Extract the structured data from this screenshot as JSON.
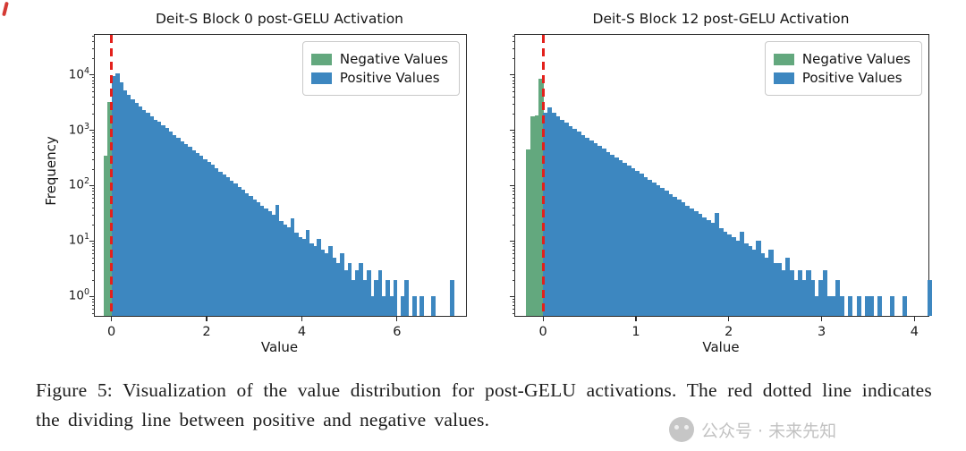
{
  "figure": {
    "caption": "Figure 5: Visualization of the value distribution for post-GELU activations. The red dotted line indicates the dividing line between positive and negative values."
  },
  "watermark": {
    "text": "公众号 · 未来先知"
  },
  "legend": {
    "negative": "Negative Values",
    "positive": "Positive Values"
  },
  "colors": {
    "positive": "#3d87c0",
    "negative": "#63a87e",
    "divider": "#e3211c"
  },
  "chart_data": [
    {
      "type": "bar",
      "title": "Deit-S Block 0 post-GELU Activation",
      "xlabel": "Value",
      "ylabel": "Frequency",
      "yscale": "log",
      "xlim": [
        -0.35,
        7.45
      ],
      "ylog_range": [
        -0.35,
        4.72
      ],
      "xticks": [
        0,
        2,
        4,
        6
      ],
      "ytick_exps": [
        0,
        1,
        2,
        3,
        4
      ],
      "show_ytick_labels": true,
      "vline_x": 0,
      "bin_width": 0.08,
      "positive_start": 0,
      "positive_values": [
        9500,
        10800,
        7200,
        5200,
        4300,
        3600,
        3100,
        2700,
        2350,
        2050,
        1800,
        1550,
        1400,
        1230,
        1080,
        950,
        830,
        730,
        640,
        560,
        500,
        440,
        390,
        345,
        300,
        265,
        235,
        205,
        180,
        160,
        140,
        122,
        108,
        95,
        84,
        74,
        65,
        57,
        50,
        44,
        39,
        34,
        30,
        45,
        23,
        20,
        18,
        26,
        14,
        12,
        11,
        16,
        9,
        8,
        11,
        7,
        6,
        8,
        5,
        4,
        6,
        3,
        4,
        2,
        3,
        4,
        2,
        3,
        1,
        2,
        3,
        1,
        2,
        1,
        2,
        0,
        1,
        2,
        0,
        1,
        0,
        1,
        0,
        0,
        1,
        0,
        0,
        0,
        0,
        2
      ],
      "neg_bin_width": 0.08,
      "negative_bins": [
        [
          -0.16,
          350
        ],
        [
          -0.08,
          3200
        ]
      ]
    },
    {
      "type": "bar",
      "title": "Deit-S Block 12 post-GELU Activation",
      "xlabel": "Value",
      "ylabel": "",
      "yscale": "log",
      "xlim": [
        -0.3,
        4.15
      ],
      "ylog_range": [
        -0.35,
        4.72
      ],
      "xticks": [
        0,
        1,
        2,
        3,
        4
      ],
      "ytick_exps": [
        0,
        1,
        2,
        3,
        4
      ],
      "show_ytick_labels": false,
      "vline_x": 0,
      "bin_width": 0.045,
      "positive_start": 0,
      "positive_values": [
        2100,
        2600,
        2050,
        1750,
        1520,
        1350,
        1180,
        1050,
        930,
        820,
        730,
        650,
        580,
        520,
        460,
        410,
        365,
        325,
        290,
        260,
        230,
        205,
        182,
        162,
        144,
        128,
        114,
        101,
        90,
        80,
        71,
        63,
        56,
        50,
        44,
        39,
        35,
        31,
        27,
        24,
        21,
        32,
        17,
        15,
        13,
        12,
        10,
        15,
        9,
        8,
        7,
        10,
        6,
        5,
        7,
        4,
        4,
        3,
        5,
        3,
        2,
        3,
        2,
        3,
        2,
        1,
        2,
        3,
        1,
        1,
        2,
        1,
        0,
        1,
        0,
        1,
        0,
        1,
        1,
        0,
        1,
        0,
        0,
        1,
        0,
        0,
        1,
        0,
        0,
        0,
        0,
        0,
        2
      ],
      "neg_bin_width": 0.045,
      "negative_bins": [
        [
          -0.18,
          450
        ],
        [
          -0.135,
          1750
        ],
        [
          -0.09,
          1850
        ],
        [
          -0.045,
          8500
        ]
      ]
    }
  ]
}
